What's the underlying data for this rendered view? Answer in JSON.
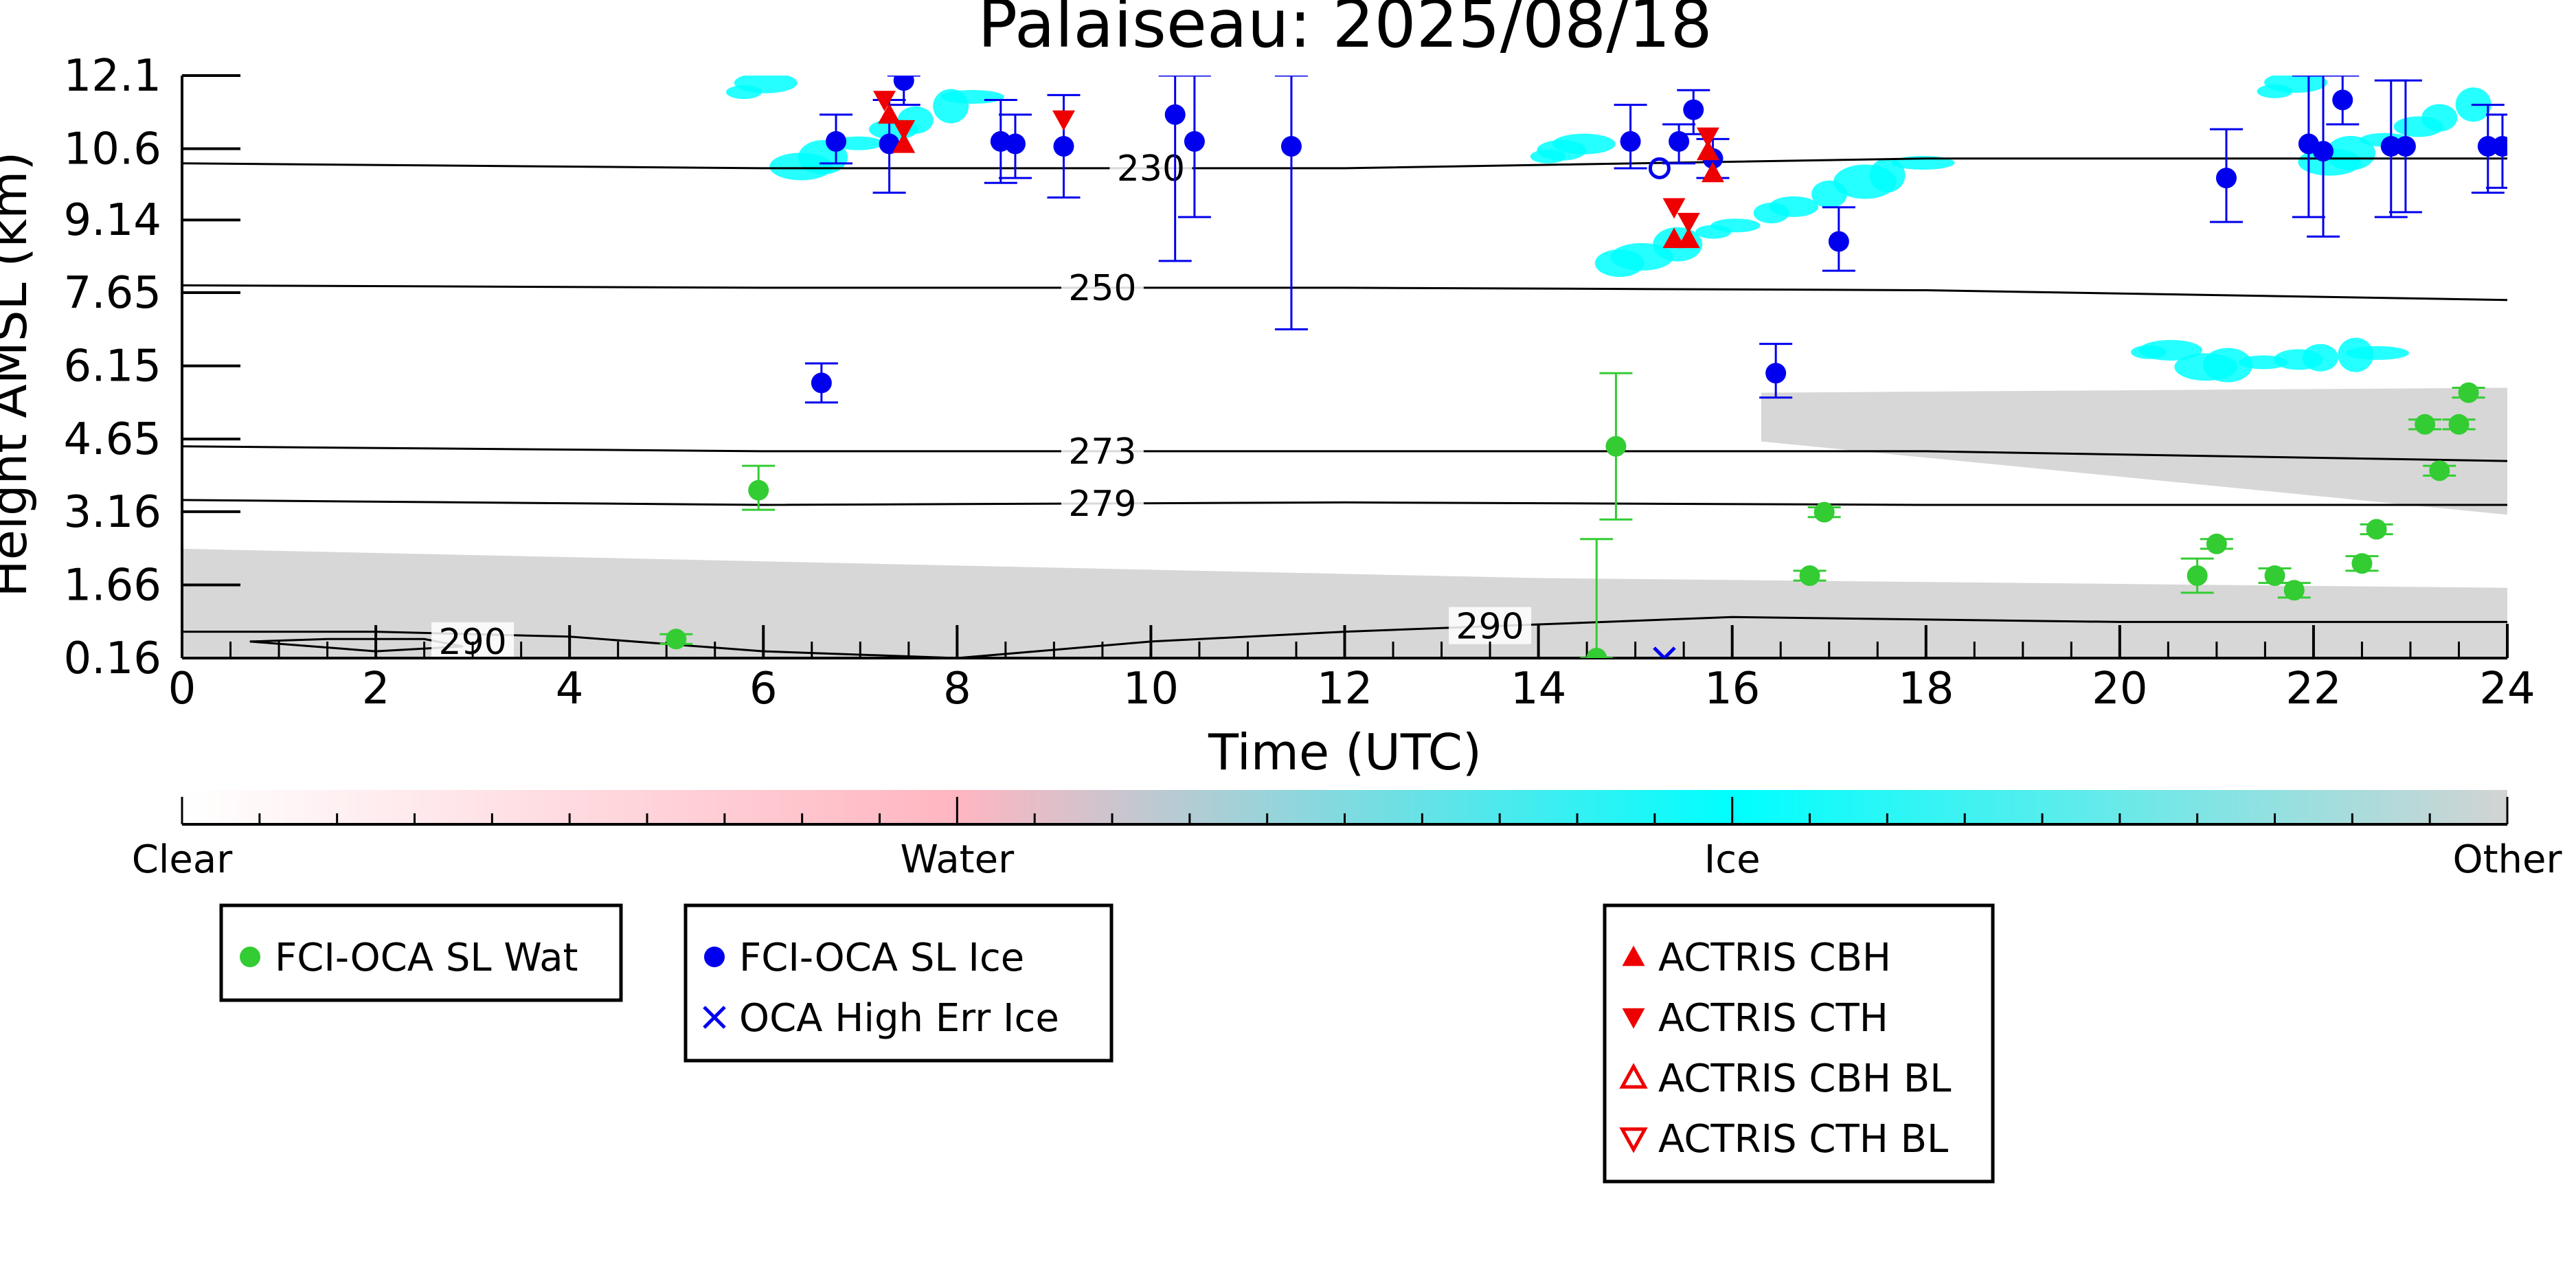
{
  "chart_data": {
    "type": "scatter",
    "title": "Palaiseau: 2025/08/18",
    "xlabel": "Time (UTC)",
    "ylabel": "Height AMSL (km)",
    "xlim": [
      0,
      24
    ],
    "ylim": [
      0.16,
      12.1
    ],
    "x_ticks": [
      0,
      2,
      4,
      6,
      8,
      10,
      12,
      14,
      16,
      18,
      20,
      22,
      24
    ],
    "y_ticks": [
      "0.16",
      "1.66",
      "3.16",
      "4.65",
      "6.15",
      "7.65",
      "9.14",
      "10.6",
      "12.1"
    ],
    "y_tick_values": [
      0.16,
      1.66,
      3.16,
      4.65,
      6.15,
      7.65,
      9.14,
      10.6,
      12.1
    ],
    "grid": false,
    "background_classification": {
      "colorbar_labels": [
        "Clear",
        "Water",
        "Ice",
        "Other"
      ],
      "colors": {
        "clear": "#ffffff",
        "water": "#ffb6c1",
        "ice": "#00ffff",
        "other": "#d3d3d3"
      },
      "regions": [
        {
          "class": "other",
          "x": [
            0,
            14,
            24
          ],
          "y_top": [
            2.4,
            1.8,
            1.6
          ],
          "y_bottom": 0.16
        },
        {
          "class": "other",
          "x": [
            16.3,
            24
          ],
          "y_top": [
            5.6,
            5.7
          ],
          "y_bottom": [
            4.6,
            3.1
          ]
        },
        {
          "class": "ice",
          "x": [
            5.8,
            8.3
          ],
          "y": [
            10.1,
            12.1
          ]
        },
        {
          "class": "ice",
          "x": [
            14.1,
            18.2
          ],
          "y": [
            8.2,
            10.9
          ]
        },
        {
          "class": "ice",
          "x": [
            21.6,
            24
          ],
          "y": [
            10.2,
            12.1
          ]
        },
        {
          "class": "ice",
          "x": [
            20.3,
            22.8
          ],
          "y": [
            6.1,
            6.5
          ]
        }
      ]
    },
    "temperature_contours": [
      {
        "label": "230",
        "label_x": 10,
        "x": [
          0,
          6,
          12,
          18,
          24
        ],
        "y": [
          10.3,
          10.2,
          10.2,
          10.4,
          10.4
        ]
      },
      {
        "label": "250",
        "label_x": 9.5,
        "x": [
          0,
          6,
          12,
          18,
          24
        ],
        "y": [
          7.8,
          7.75,
          7.75,
          7.7,
          7.5
        ]
      },
      {
        "label": "273",
        "label_x": 9.5,
        "x": [
          0,
          6,
          12,
          18,
          24
        ],
        "y": [
          4.5,
          4.4,
          4.4,
          4.4,
          4.2
        ]
      },
      {
        "label": "279",
        "label_x": 9.5,
        "x": [
          0,
          6,
          12,
          18,
          24
        ],
        "y": [
          3.4,
          3.3,
          3.35,
          3.3,
          3.3
        ]
      },
      {
        "label": "290",
        "label_x": 13.5,
        "x": [
          0,
          2,
          4,
          6,
          8,
          10,
          12,
          14,
          16,
          18,
          20,
          22,
          24
        ],
        "y": [
          0.7,
          0.7,
          0.6,
          0.3,
          0.16,
          0.5,
          0.7,
          0.85,
          1.0,
          0.95,
          0.9,
          0.9,
          0.9
        ]
      },
      {
        "label": "290",
        "label_x": 3,
        "x": [
          0.7,
          1.5,
          2.5,
          2.9,
          2.0,
          0.7
        ],
        "y": [
          0.5,
          0.55,
          0.55,
          0.4,
          0.3,
          0.5
        ]
      }
    ],
    "series": [
      {
        "name": "FCI-OCA SL Wat",
        "color": "#33cc33",
        "marker": "circle",
        "points": [
          {
            "x": 5.1,
            "y": 0.55,
            "err": [
              0.45,
              0.65
            ]
          },
          {
            "x": 5.95,
            "y": 3.6,
            "err": [
              3.2,
              4.1
            ]
          },
          {
            "x": 14.6,
            "y": 0.16,
            "err": [
              0.16,
              2.6
            ]
          },
          {
            "x": 14.8,
            "y": 4.5,
            "err": [
              3.0,
              6.0
            ]
          },
          {
            "x": 16.8,
            "y": 1.85,
            "err": [
              1.75,
              1.95
            ]
          },
          {
            "x": 16.95,
            "y": 3.15,
            "err": [
              3.05,
              3.25
            ]
          },
          {
            "x": 20.8,
            "y": 1.85,
            "err": [
              1.5,
              2.2
            ]
          },
          {
            "x": 21.0,
            "y": 2.5,
            "err": [
              2.4,
              2.6
            ]
          },
          {
            "x": 21.6,
            "y": 1.85,
            "err": [
              1.7,
              2.0
            ]
          },
          {
            "x": 21.8,
            "y": 1.55,
            "err": [
              1.4,
              1.7
            ]
          },
          {
            "x": 22.5,
            "y": 2.1,
            "err": [
              1.95,
              2.25
            ]
          },
          {
            "x": 22.65,
            "y": 2.8,
            "err": [
              2.7,
              2.9
            ]
          },
          {
            "x": 23.15,
            "y": 4.95,
            "err": [
              4.85,
              5.05
            ]
          },
          {
            "x": 23.3,
            "y": 4.0,
            "err": [
              3.9,
              4.1
            ]
          },
          {
            "x": 23.5,
            "y": 4.95,
            "err": [
              4.85,
              5.05
            ]
          },
          {
            "x": 23.6,
            "y": 5.6,
            "err": [
              5.5,
              5.7
            ]
          }
        ]
      },
      {
        "name": "FCI-OCA SL Ice",
        "color": "#0000ee",
        "marker": "circle",
        "points": [
          {
            "x": 6.6,
            "y": 5.8,
            "err": [
              5.4,
              6.2
            ]
          },
          {
            "x": 6.75,
            "y": 10.75,
            "err": [
              10.3,
              11.3
            ]
          },
          {
            "x": 7.3,
            "y": 10.7,
            "err": [
              9.7,
              11.6
            ]
          },
          {
            "x": 7.45,
            "y": 12.0,
            "err": [
              11.5,
              12.1
            ]
          },
          {
            "x": 8.45,
            "y": 10.75,
            "err": [
              9.9,
              11.6
            ]
          },
          {
            "x": 8.6,
            "y": 10.7,
            "err": [
              10.0,
              11.3
            ]
          },
          {
            "x": 9.1,
            "y": 10.65,
            "err": [
              9.6,
              11.7
            ]
          },
          {
            "x": 10.25,
            "y": 11.3,
            "err": [
              8.3,
              12.1
            ]
          },
          {
            "x": 10.45,
            "y": 10.75,
            "err": [
              9.2,
              12.1
            ]
          },
          {
            "x": 11.45,
            "y": 10.65,
            "err": [
              6.9,
              12.1
            ]
          },
          {
            "x": 14.95,
            "y": 10.75,
            "err": [
              10.2,
              11.5
            ]
          },
          {
            "x": 15.45,
            "y": 10.75,
            "err": [
              10.3,
              11.1
            ]
          },
          {
            "x": 15.6,
            "y": 11.4,
            "err": [
              10.9,
              11.8
            ]
          },
          {
            "x": 15.8,
            "y": 10.4,
            "err": [
              10.0,
              10.8
            ]
          },
          {
            "x": 16.45,
            "y": 6.0,
            "err": [
              5.5,
              6.6
            ]
          },
          {
            "x": 17.1,
            "y": 8.7,
            "err": [
              8.1,
              9.4
            ]
          },
          {
            "x": 21.1,
            "y": 10.0,
            "err": [
              9.1,
              11.0
            ]
          },
          {
            "x": 21.95,
            "y": 10.7,
            "err": [
              9.2,
              12.1
            ]
          },
          {
            "x": 22.1,
            "y": 10.55,
            "err": [
              8.8,
              12.1
            ]
          },
          {
            "x": 22.3,
            "y": 11.6,
            "err": [
              11.1,
              12.1
            ]
          },
          {
            "x": 22.8,
            "y": 10.65,
            "err": [
              9.2,
              12.0
            ]
          },
          {
            "x": 22.95,
            "y": 10.65,
            "err": [
              9.3,
              12.0
            ]
          },
          {
            "x": 23.8,
            "y": 10.65,
            "err": [
              9.7,
              11.5
            ]
          },
          {
            "x": 23.95,
            "y": 10.65,
            "err": [
              9.8,
              11.3
            ]
          }
        ]
      },
      {
        "name": "OCA High Err Ice",
        "color": "#0000ee",
        "marker": "x",
        "points": [
          {
            "x": 15.3,
            "y": 0.16
          }
        ]
      },
      {
        "name": "FCI-OCA SL Ice (open)",
        "color": "#0000ee",
        "marker": "circle-open",
        "legend": false,
        "points": [
          {
            "x": 15.25,
            "y": 10.2
          }
        ]
      },
      {
        "name": "ACTRIS CBH",
        "color": "#ee0000",
        "marker": "triangle-up",
        "points": [
          {
            "x": 7.3,
            "y": 11.3
          },
          {
            "x": 7.45,
            "y": 10.7
          },
          {
            "x": 15.4,
            "y": 8.75
          },
          {
            "x": 15.55,
            "y": 8.75
          },
          {
            "x": 15.8,
            "y": 10.1
          },
          {
            "x": 15.75,
            "y": 10.55
          }
        ]
      },
      {
        "name": "ACTRIS CTH",
        "color": "#ee0000",
        "marker": "triangle-down",
        "points": [
          {
            "x": 7.25,
            "y": 11.6
          },
          {
            "x": 7.45,
            "y": 11.0
          },
          {
            "x": 9.1,
            "y": 11.2
          },
          {
            "x": 15.4,
            "y": 9.4
          },
          {
            "x": 15.55,
            "y": 9.1
          },
          {
            "x": 15.75,
            "y": 10.85
          }
        ]
      },
      {
        "name": "ACTRIS CBH BL",
        "color": "#ee0000",
        "marker": "triangle-up-open",
        "points": []
      },
      {
        "name": "ACTRIS CTH BL",
        "color": "#ee0000",
        "marker": "triangle-down-open",
        "points": []
      }
    ],
    "legend": {
      "boxes": [
        [
          "FCI-OCA SL Wat"
        ],
        [
          "FCI-OCA SL Ice",
          "OCA High Err Ice"
        ],
        [
          "ACTRIS CBH",
          "ACTRIS CTH",
          "ACTRIS CBH BL",
          "ACTRIS CTH BL"
        ]
      ]
    }
  }
}
